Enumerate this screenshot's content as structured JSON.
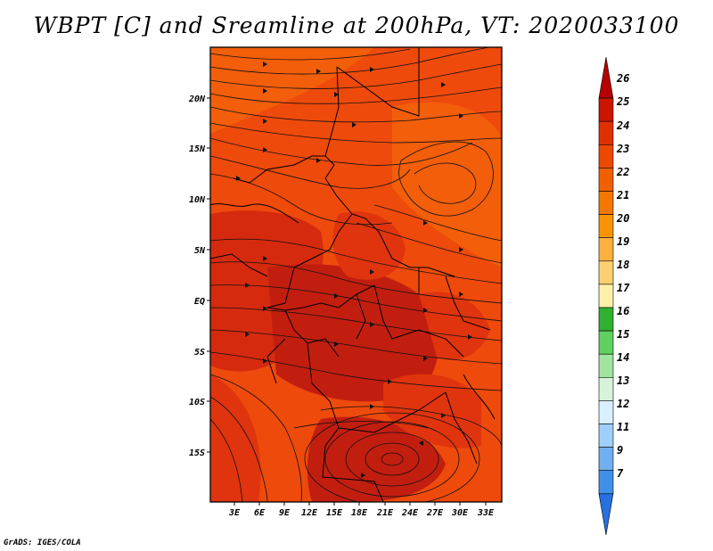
{
  "title": "WBPT [C] and Sreamline at 200hPa, VT: 2020033100",
  "credit": "GrADS: IGES/COLA",
  "map": {
    "lat_labels": [
      "20N",
      "15N",
      "10N",
      "5N",
      "EQ",
      "5S",
      "10S",
      "15S"
    ],
    "lon_labels": [
      "3E",
      "6E",
      "9E",
      "12E",
      "15E",
      "18E",
      "21E",
      "24E",
      "27E",
      "30E",
      "33E"
    ],
    "fill_colors": {
      "dark_red": "#c21e10",
      "red": "#e0340e",
      "orange_red": "#ee4a0c",
      "orange": "#f25e0a"
    }
  },
  "colorbar": {
    "labels": [
      "26",
      "25",
      "24",
      "23",
      "22",
      "21",
      "20",
      "19",
      "18",
      "17",
      "16",
      "15",
      "14",
      "13",
      "12",
      "11",
      "9",
      "7"
    ],
    "colors": [
      "#b40000",
      "#cc1400",
      "#e03000",
      "#ec4800",
      "#f06000",
      "#f47800",
      "#f89400",
      "#fcb040",
      "#fcd070",
      "#fef0a8",
      "#30b030",
      "#60d060",
      "#a0e4a0",
      "#d8f4d8",
      "#d8f0ff",
      "#a0d0fa",
      "#70b0f0",
      "#4090ea",
      "#2870e0"
    ]
  }
}
